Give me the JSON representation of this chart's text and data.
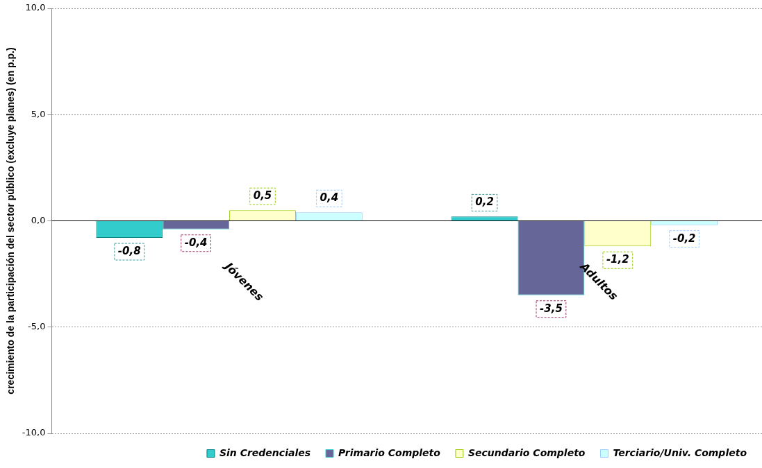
{
  "chart_data": {
    "type": "bar",
    "ylabel": "crecimiento de la participación del sector público (excluye planes) (en p.p.)",
    "categories": [
      "Jóvenes",
      "Adultos"
    ],
    "series": [
      {
        "name": "Sin Credenciales",
        "color": "#33cccc",
        "values": [
          -0.8,
          0.2
        ],
        "value_labels": [
          "-0,8",
          "0,2"
        ]
      },
      {
        "name": "Primario Completo",
        "color": "#666699",
        "values": [
          -0.4,
          -3.5
        ],
        "value_labels": [
          "-0,4",
          "-3,5"
        ]
      },
      {
        "name": "Secundario Completo",
        "color": "#ffffcc",
        "values": [
          0.5,
          -1.2
        ],
        "value_labels": [
          "0,5",
          "-1,2"
        ]
      },
      {
        "name": "Terciario/Univ. Completo",
        "color": "#ccffff",
        "values": [
          0.4,
          -0.2
        ],
        "value_labels": [
          "0,4",
          "-0,2"
        ]
      }
    ],
    "ylim": [
      -10,
      10
    ],
    "yticks": [
      {
        "value": -10,
        "label": "-10,0"
      },
      {
        "value": -5,
        "label": "-5,0"
      },
      {
        "value": 0,
        "label": "0,0"
      },
      {
        "value": 5,
        "label": "5,0"
      },
      {
        "value": 10,
        "label": "10,0"
      }
    ],
    "grid": "y",
    "legend": "bottom"
  }
}
